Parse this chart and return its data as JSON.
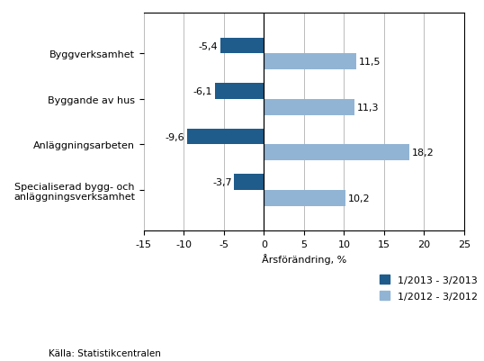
{
  "categories": [
    "Byggverksamhet",
    "Byggande av hus",
    "Anläggningsarbeten",
    "Specialiserad bygg- och\nanläggningsverksamhet"
  ],
  "series1_label": "1/2013 - 3/2013",
  "series2_label": "1/2012 - 3/2012",
  "series1_values": [
    -5.4,
    -6.1,
    -9.6,
    -3.7
  ],
  "series2_values": [
    11.5,
    11.3,
    18.2,
    10.2
  ],
  "series1_color": "#1F5C8B",
  "series2_color": "#92B4D4",
  "xlim": [
    -15,
    25
  ],
  "xticks": [
    -15,
    -10,
    -5,
    0,
    5,
    10,
    15,
    20,
    25
  ],
  "xlabel": "Årsförändring, %",
  "source": "Källa: Statistikcentralen",
  "bar_height": 0.35,
  "background_color": "#ffffff",
  "grid_color": "#bbbbbb"
}
